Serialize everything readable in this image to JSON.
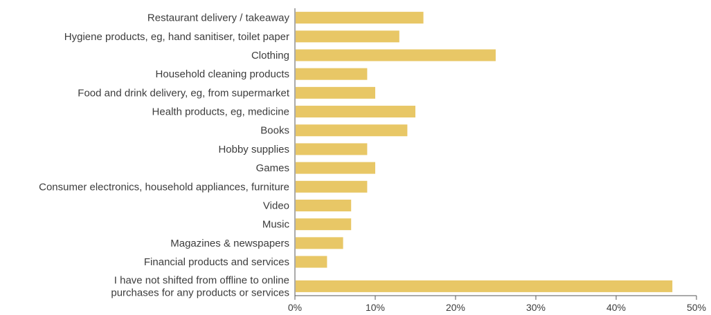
{
  "chart_data": {
    "type": "bar",
    "orientation": "horizontal",
    "title": "",
    "xlabel": "",
    "ylabel": "",
    "xlim": [
      0,
      50
    ],
    "x_ticks": [
      "0%",
      "10%",
      "20%",
      "30%",
      "40%",
      "50%"
    ],
    "grid": false,
    "bar_color": "#e8c766",
    "categories": [
      [
        "Restaurant delivery / takeaway"
      ],
      [
        "Hygiene products, eg, hand sanitiser, toilet paper"
      ],
      [
        "Clothing"
      ],
      [
        "Household cleaning products"
      ],
      [
        "Food and drink delivery, eg, from supermarket"
      ],
      [
        "Health products, eg, medicine"
      ],
      [
        "Books"
      ],
      [
        "Hobby supplies"
      ],
      [
        "Games"
      ],
      [
        "Consumer electronics, household appliances, furniture"
      ],
      [
        "Video"
      ],
      [
        "Music"
      ],
      [
        "Magazines & newspapers"
      ],
      [
        "Financial products and services"
      ],
      [
        "I have not shifted from offline to online",
        "purchases for any products or services"
      ]
    ],
    "values": [
      16,
      13,
      25,
      9,
      10,
      15,
      14,
      9,
      10,
      9,
      7,
      7,
      6,
      4,
      47
    ]
  }
}
